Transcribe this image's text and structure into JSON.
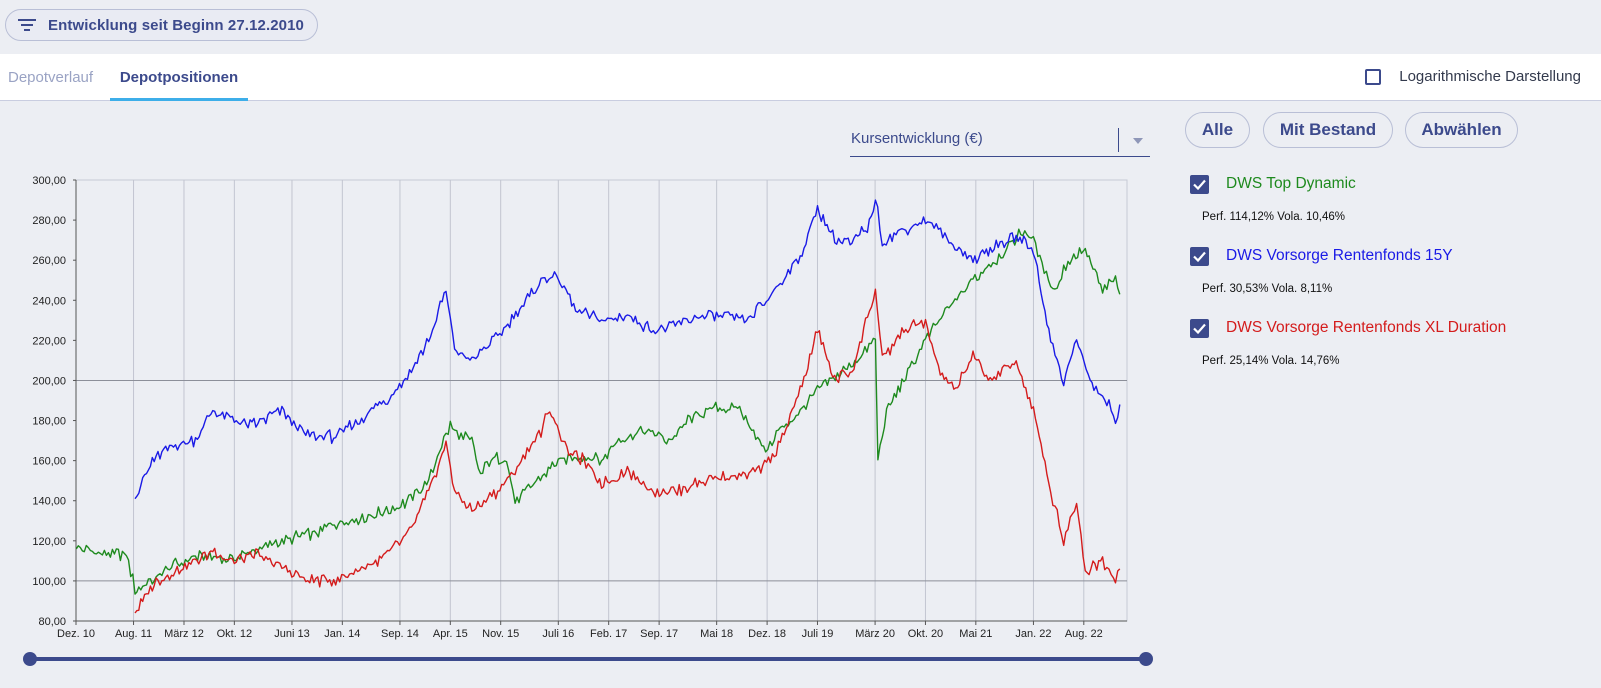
{
  "filter": {
    "label": "Entwicklung seit Beginn 27.12.2010",
    "icon": "filter-icon"
  },
  "tabs": [
    {
      "label": "Depotverlauf",
      "active": false
    },
    {
      "label": "Depotpositionen",
      "active": true
    }
  ],
  "log_toggle": {
    "label": "Logarithmische Darstellung",
    "checked": false
  },
  "select": {
    "value": "Kursentwicklung (€)"
  },
  "buttons": {
    "all": "Alle",
    "with_stock": "Mit Bestand",
    "deselect": "Abwählen"
  },
  "legend": [
    {
      "name": "DWS Top Dynamic",
      "stats": "Perf. 114,12% Vola. 10,46%",
      "color": "#1e8a1e",
      "checked": true
    },
    {
      "name": "DWS Vorsorge Rentenfonds 15Y",
      "stats": "Perf. 30,53% Vola. 8,11%",
      "color": "#1a1ae6",
      "checked": true
    },
    {
      "name": "DWS Vorsorge Rentenfonds XL Duration",
      "stats": "Perf. 25,14% Vola. 14,76%",
      "color": "#d41c1c",
      "checked": true
    }
  ],
  "chart_data": {
    "type": "line",
    "ylim": [
      80,
      300
    ],
    "yticks": [
      "80,00",
      "100,00",
      "120,00",
      "140,00",
      "160,00",
      "180,00",
      "200,00",
      "220,00",
      "240,00",
      "260,00",
      "280,00",
      "300,00"
    ],
    "ytick_values": [
      80,
      100,
      120,
      140,
      160,
      180,
      200,
      220,
      240,
      260,
      280,
      300
    ],
    "xlim": [
      2010.917,
      2023.083
    ],
    "xticks": [
      "Dez. 10",
      "Aug. 11",
      "März 12",
      "Okt. 12",
      "Juni 13",
      "Jan. 14",
      "Sep. 14",
      "Apr. 15",
      "Nov. 15",
      "Juli 16",
      "Feb. 17",
      "Sep. 17",
      "Mai 18",
      "Dez. 18",
      "Juli 19",
      "März 20",
      "Okt. 20",
      "Mai 21",
      "Jan. 22",
      "Aug. 22"
    ],
    "xtick_values": [
      2010.917,
      2011.583,
      2012.167,
      2012.75,
      2013.417,
      2014.0,
      2014.667,
      2015.25,
      2015.833,
      2016.5,
      2017.083,
      2017.667,
      2018.333,
      2018.917,
      2019.5,
      2020.167,
      2020.75,
      2021.333,
      2022.0,
      2022.583
    ],
    "reference_lines": [
      100,
      200
    ],
    "grid": "vertical",
    "series": [
      {
        "name": "DWS Top Dynamic",
        "color": "#1e8a1e",
        "points": [
          [
            2010.92,
            116
          ],
          [
            2011.2,
            114
          ],
          [
            2011.5,
            113
          ],
          [
            2011.6,
            96
          ],
          [
            2011.8,
            100
          ],
          [
            2012.0,
            107
          ],
          [
            2012.3,
            112
          ],
          [
            2012.7,
            111
          ],
          [
            2013.0,
            115
          ],
          [
            2013.3,
            120
          ],
          [
            2013.7,
            124
          ],
          [
            2014.0,
            130
          ],
          [
            2014.3,
            132
          ],
          [
            2014.7,
            138
          ],
          [
            2015.0,
            150
          ],
          [
            2015.1,
            162
          ],
          [
            2015.25,
            178
          ],
          [
            2015.35,
            172
          ],
          [
            2015.5,
            170
          ],
          [
            2015.6,
            152
          ],
          [
            2015.7,
            160
          ],
          [
            2015.9,
            162
          ],
          [
            2016.0,
            140
          ],
          [
            2016.2,
            148
          ],
          [
            2016.5,
            160
          ],
          [
            2016.8,
            162
          ],
          [
            2017.0,
            160
          ],
          [
            2017.2,
            170
          ],
          [
            2017.5,
            175
          ],
          [
            2017.8,
            170
          ],
          [
            2018.0,
            180
          ],
          [
            2018.3,
            186
          ],
          [
            2018.6,
            186
          ],
          [
            2018.9,
            165
          ],
          [
            2019.0,
            172
          ],
          [
            2019.3,
            185
          ],
          [
            2019.5,
            195
          ],
          [
            2019.8,
            205
          ],
          [
            2020.0,
            212
          ],
          [
            2020.17,
            220
          ],
          [
            2020.2,
            162
          ],
          [
            2020.3,
            185
          ],
          [
            2020.5,
            200
          ],
          [
            2020.75,
            220
          ],
          [
            2021.0,
            235
          ],
          [
            2021.3,
            250
          ],
          [
            2021.6,
            262
          ],
          [
            2021.9,
            276
          ],
          [
            2022.0,
            270
          ],
          [
            2022.1,
            258
          ],
          [
            2022.25,
            245
          ],
          [
            2022.4,
            260
          ],
          [
            2022.6,
            265
          ],
          [
            2022.8,
            245
          ],
          [
            2022.95,
            250
          ],
          [
            2023.0,
            243
          ]
        ]
      },
      {
        "name": "DWS Vorsorge Rentenfonds 15Y",
        "color": "#1a1ae6",
        "points": [
          [
            2011.6,
            141
          ],
          [
            2011.8,
            160
          ],
          [
            2012.0,
            167
          ],
          [
            2012.3,
            170
          ],
          [
            2012.5,
            185
          ],
          [
            2012.75,
            180
          ],
          [
            2013.0,
            178
          ],
          [
            2013.3,
            185
          ],
          [
            2013.6,
            172
          ],
          [
            2013.9,
            172
          ],
          [
            2014.2,
            180
          ],
          [
            2014.5,
            190
          ],
          [
            2014.8,
            205
          ],
          [
            2015.0,
            220
          ],
          [
            2015.2,
            245
          ],
          [
            2015.3,
            215
          ],
          [
            2015.5,
            210
          ],
          [
            2015.8,
            222
          ],
          [
            2016.1,
            238
          ],
          [
            2016.3,
            250
          ],
          [
            2016.5,
            252
          ],
          [
            2016.7,
            235
          ],
          [
            2017.0,
            230
          ],
          [
            2017.3,
            232
          ],
          [
            2017.6,
            225
          ],
          [
            2017.9,
            228
          ],
          [
            2018.1,
            232
          ],
          [
            2018.4,
            232
          ],
          [
            2018.7,
            230
          ],
          [
            2019.0,
            245
          ],
          [
            2019.3,
            262
          ],
          [
            2019.5,
            285
          ],
          [
            2019.7,
            270
          ],
          [
            2019.9,
            268
          ],
          [
            2020.1,
            278
          ],
          [
            2020.17,
            290
          ],
          [
            2020.25,
            270
          ],
          [
            2020.5,
            275
          ],
          [
            2020.75,
            280
          ],
          [
            2020.9,
            275
          ],
          [
            2021.0,
            270
          ],
          [
            2021.3,
            260
          ],
          [
            2021.5,
            265
          ],
          [
            2021.8,
            272
          ],
          [
            2022.0,
            265
          ],
          [
            2022.2,
            220
          ],
          [
            2022.35,
            200
          ],
          [
            2022.5,
            220
          ],
          [
            2022.7,
            195
          ],
          [
            2022.85,
            190
          ],
          [
            2022.95,
            180
          ],
          [
            2023.0,
            188
          ]
        ]
      },
      {
        "name": "DWS Vorsorge Rentenfonds XL Duration",
        "color": "#d41c1c",
        "points": [
          [
            2011.6,
            84
          ],
          [
            2011.8,
            98
          ],
          [
            2012.0,
            103
          ],
          [
            2012.2,
            108
          ],
          [
            2012.5,
            115
          ],
          [
            2012.75,
            110
          ],
          [
            2013.0,
            113
          ],
          [
            2013.3,
            107
          ],
          [
            2013.6,
            100
          ],
          [
            2013.9,
            100
          ],
          [
            2014.2,
            106
          ],
          [
            2014.5,
            112
          ],
          [
            2014.8,
            125
          ],
          [
            2015.0,
            145
          ],
          [
            2015.2,
            168
          ],
          [
            2015.3,
            145
          ],
          [
            2015.5,
            135
          ],
          [
            2015.8,
            145
          ],
          [
            2016.0,
            155
          ],
          [
            2016.3,
            175
          ],
          [
            2016.4,
            186
          ],
          [
            2016.6,
            165
          ],
          [
            2016.8,
            160
          ],
          [
            2017.0,
            148
          ],
          [
            2017.3,
            155
          ],
          [
            2017.6,
            145
          ],
          [
            2017.9,
            145
          ],
          [
            2018.2,
            150
          ],
          [
            2018.5,
            152
          ],
          [
            2018.8,
            155
          ],
          [
            2019.0,
            162
          ],
          [
            2019.3,
            195
          ],
          [
            2019.5,
            225
          ],
          [
            2019.7,
            200
          ],
          [
            2019.9,
            205
          ],
          [
            2020.17,
            245
          ],
          [
            2020.25,
            210
          ],
          [
            2020.5,
            225
          ],
          [
            2020.75,
            230
          ],
          [
            2020.9,
            205
          ],
          [
            2021.1,
            195
          ],
          [
            2021.3,
            212
          ],
          [
            2021.5,
            200
          ],
          [
            2021.8,
            210
          ],
          [
            2022.0,
            185
          ],
          [
            2022.2,
            145
          ],
          [
            2022.35,
            120
          ],
          [
            2022.5,
            140
          ],
          [
            2022.6,
            105
          ],
          [
            2022.8,
            110
          ],
          [
            2022.95,
            102
          ],
          [
            2023.0,
            106
          ]
        ]
      }
    ]
  }
}
